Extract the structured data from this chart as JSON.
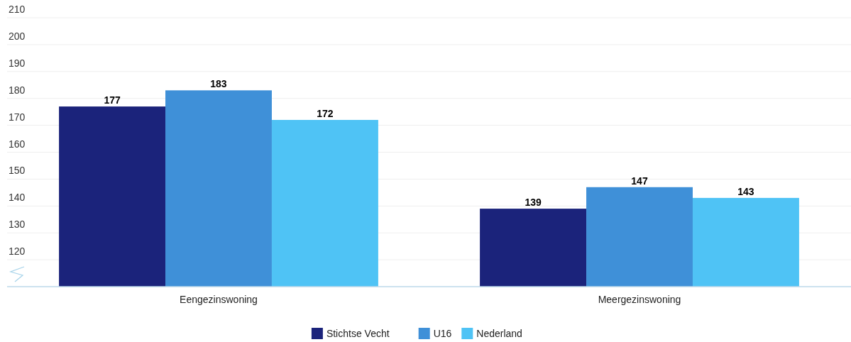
{
  "chart_data": {
    "type": "bar",
    "categories": [
      "Eengezinswoning",
      "Meergezinswoning"
    ],
    "series": [
      {
        "name": "Stichtse Vecht",
        "color": "#1b237b",
        "values": [
          177,
          139
        ]
      },
      {
        "name": "U16",
        "color": "#3f90d8",
        "values": [
          183,
          147
        ]
      },
      {
        "name": "Nederland",
        "color": "#4fc3f5",
        "values": [
          172,
          143
        ]
      }
    ],
    "ylim": [
      110,
      210
    ],
    "yticks": [
      120,
      130,
      140,
      150,
      160,
      170,
      180,
      190,
      200,
      210
    ],
    "grid": "y",
    "legend": "bottom",
    "data_labels": true
  }
}
